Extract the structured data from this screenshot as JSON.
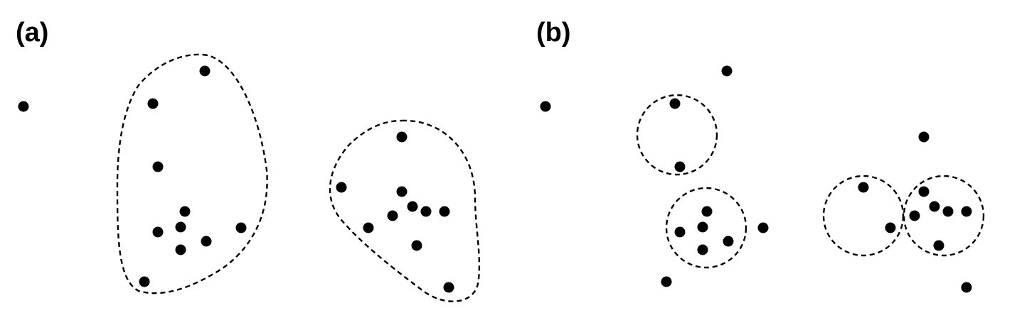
{
  "panels": {
    "a": {
      "label": "(a)"
    },
    "b": {
      "label": "(b)"
    }
  },
  "colors": {
    "point": "#000000",
    "boundary": "#000000",
    "background": "#ffffff"
  }
}
